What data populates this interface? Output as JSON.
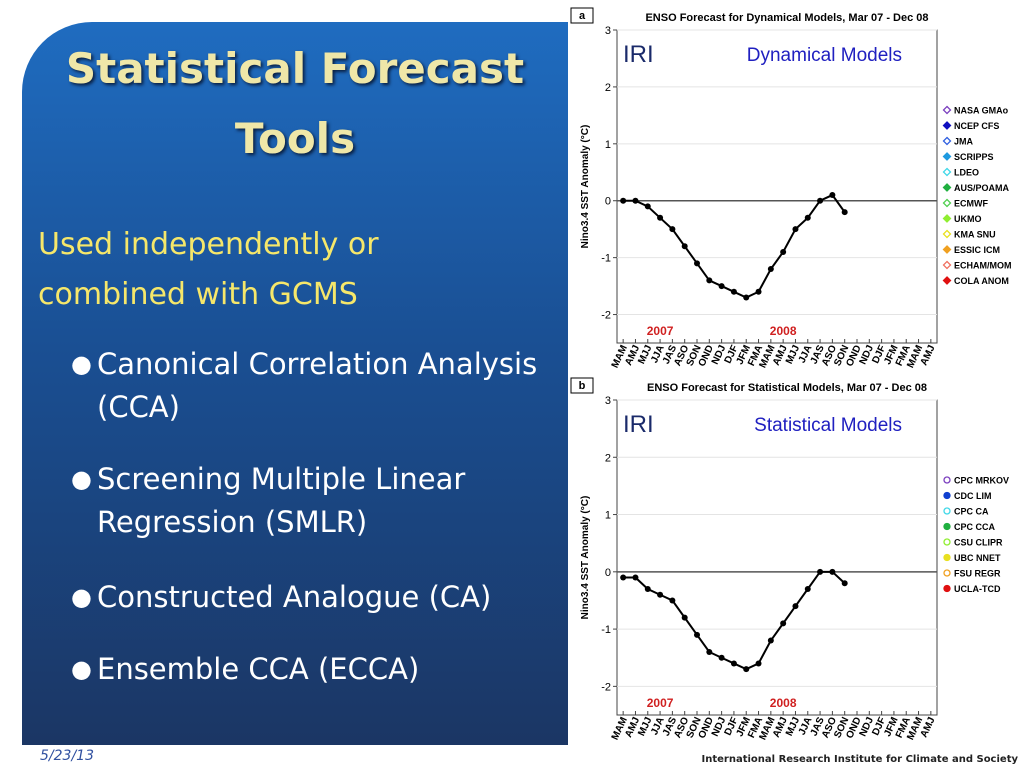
{
  "slide": {
    "title": "Statistical Forecast Tools",
    "subtitle": "Used independently or combined with GCMS",
    "bullets": [
      "Canonical Correlation Analysis (CCA)",
      "Screening Multiple Linear Regression (SMLR)",
      "Constructed Analogue (CA)",
      "Ensemble CCA (ECCA)"
    ],
    "date": "5/23/13",
    "footer": "International Research Institute for Climate and Society"
  },
  "chart_data": [
    {
      "type": "line",
      "panel": "a",
      "title": "ENSO Forecast for Dynamical Models, Mar 07 - Dec 08",
      "logo": "IRI",
      "label": "Dynamical Models",
      "ylabel": "Nino3.4 SST Anomaly (°C)",
      "years": [
        "2007",
        "2008"
      ],
      "categories": [
        "MAM",
        "AMJ",
        "MJJ",
        "JJA",
        "JAS",
        "ASO",
        "SON",
        "OND",
        "NDJ",
        "DJF",
        "JFM",
        "FMA",
        "MAM",
        "AMJ",
        "MJJ",
        "JJA",
        "JAS",
        "ASO",
        "SON",
        "OND",
        "NDJ",
        "DJF",
        "JFM",
        "FMA",
        "MAM",
        "AMJ"
      ],
      "ylim": [
        -2.5,
        3
      ],
      "yticks": [
        -2,
        -1,
        0,
        1,
        2,
        3
      ],
      "observed": {
        "color": "#000000",
        "values": [
          0,
          0,
          -0.1,
          -0.3,
          -0.5,
          -0.8,
          -1.1,
          -1.4,
          -1.5,
          -1.6,
          -1.7,
          -1.6,
          -1.2,
          -0.9,
          -0.5,
          -0.3,
          0,
          0.1,
          -0.2,
          null,
          null,
          null,
          null,
          null,
          null,
          null
        ]
      },
      "legend_marker": "diamond",
      "legend": [
        {
          "name": "NASA GMAo",
          "color": "#7b3fbf"
        },
        {
          "name": "NCEP CFS",
          "color": "#1010c0"
        },
        {
          "name": "JMA",
          "color": "#3060e0"
        },
        {
          "name": "SCRIPPS",
          "color": "#1e9ae0"
        },
        {
          "name": "LDEO",
          "color": "#40d8e8"
        },
        {
          "name": "AUS/POAMA",
          "color": "#20b040"
        },
        {
          "name": "ECMWF",
          "color": "#50d050"
        },
        {
          "name": "UKMO",
          "color": "#90ee30"
        },
        {
          "name": "KMA SNU",
          "color": "#e8e020"
        },
        {
          "name": "ESSIC ICM",
          "color": "#f0a020"
        },
        {
          "name": "ECHAM/MOM",
          "color": "#f07060"
        },
        {
          "name": "COLA ANOM",
          "color": "#e01010"
        }
      ]
    },
    {
      "type": "line",
      "panel": "b",
      "title": "ENSO Forecast for Statistical Models, Mar 07 - Dec 08",
      "logo": "IRI",
      "label": "Statistical Models",
      "ylabel": "Nino3.4 SST Anomaly (°C)",
      "years": [
        "2007",
        "2008"
      ],
      "categories": [
        "MAM",
        "AMJ",
        "MJJ",
        "JJA",
        "JAS",
        "ASO",
        "SON",
        "OND",
        "NDJ",
        "DJF",
        "JFM",
        "FMA",
        "MAM",
        "AMJ",
        "MJJ",
        "JJA",
        "JAS",
        "ASO",
        "SON",
        "OND",
        "NDJ",
        "DJF",
        "JFM",
        "FMA",
        "MAM",
        "AMJ"
      ],
      "ylim": [
        -2.5,
        3
      ],
      "yticks": [
        -2,
        -1,
        0,
        1,
        2,
        3
      ],
      "observed": {
        "color": "#000000",
        "values": [
          -0.1,
          -0.1,
          -0.3,
          -0.4,
          -0.5,
          -0.8,
          -1.1,
          -1.4,
          -1.5,
          -1.6,
          -1.7,
          -1.6,
          -1.2,
          -0.9,
          -0.6,
          -0.3,
          0,
          0,
          -0.2,
          null,
          null,
          null,
          null,
          null,
          null,
          null
        ]
      },
      "legend_marker": "circle",
      "legend": [
        {
          "name": "CPC MRKOV",
          "color": "#7b3fbf"
        },
        {
          "name": "CDC LIM",
          "color": "#1040d0"
        },
        {
          "name": "CPC CA",
          "color": "#40d8e8"
        },
        {
          "name": "CPC CCA",
          "color": "#20b040"
        },
        {
          "name": "CSU CLIPR",
          "color": "#90ee30"
        },
        {
          "name": "UBC NNET",
          "color": "#e8e020"
        },
        {
          "name": "FSU REGR",
          "color": "#f0a020"
        },
        {
          "name": "UCLA-TCD",
          "color": "#e01010"
        }
      ]
    }
  ]
}
